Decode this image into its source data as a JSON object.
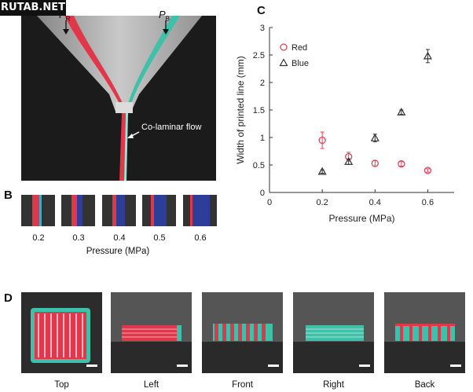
{
  "watermark": "RUTAB.NET",
  "panelA": {
    "label_pr": "P",
    "label_pr_sub": "R",
    "label_pb": "P",
    "label_pb_sub": "B",
    "flow_label": "Co-laminar flow"
  },
  "panelB": {
    "label": "B",
    "pressures": [
      "0.2",
      "0.3",
      "0.4",
      "0.5",
      "0.6"
    ],
    "axis_label": "Pressure (MPa)"
  },
  "panelC": {
    "label": "C",
    "legend": [
      {
        "name": "Red",
        "marker": "circle",
        "color": "#d9475a"
      },
      {
        "name": "Blue",
        "marker": "triangle",
        "color": "#333333"
      }
    ]
  },
  "chart_data": {
    "type": "scatter",
    "xlabel": "Pressure (MPa)",
    "ylabel": "Width of printed line (mm)",
    "xlim": [
      0,
      0.7
    ],
    "ylim": [
      0,
      3
    ],
    "xticks": [
      "0",
      "0.2",
      "0.4",
      "0.6"
    ],
    "yticks": [
      "0",
      "0.5",
      "1",
      "1.5",
      "2",
      "2.5",
      "3"
    ],
    "legend_position": "top-left",
    "series": [
      {
        "name": "Red",
        "marker": "circle",
        "color": "#d9475a",
        "x": [
          0.2,
          0.3,
          0.4,
          0.5,
          0.6
        ],
        "y": [
          0.95,
          0.65,
          0.53,
          0.52,
          0.4
        ],
        "err": [
          0.15,
          0.08,
          0.05,
          0.04,
          0.03
        ]
      },
      {
        "name": "Blue",
        "marker": "triangle",
        "color": "#333333",
        "x": [
          0.2,
          0.3,
          0.4,
          0.5,
          0.6
        ],
        "y": [
          0.38,
          0.56,
          0.99,
          1.46,
          2.48
        ],
        "err": [
          0.03,
          0.05,
          0.07,
          0.04,
          0.12
        ]
      }
    ]
  },
  "panelD": {
    "label": "D",
    "views": [
      "Top",
      "Left",
      "Front",
      "Right",
      "Back"
    ]
  },
  "colors": {
    "red": "#e0374a",
    "teal": "#3fc0a8",
    "blue": "#2e3d9a",
    "background": "#1b1b1b"
  }
}
